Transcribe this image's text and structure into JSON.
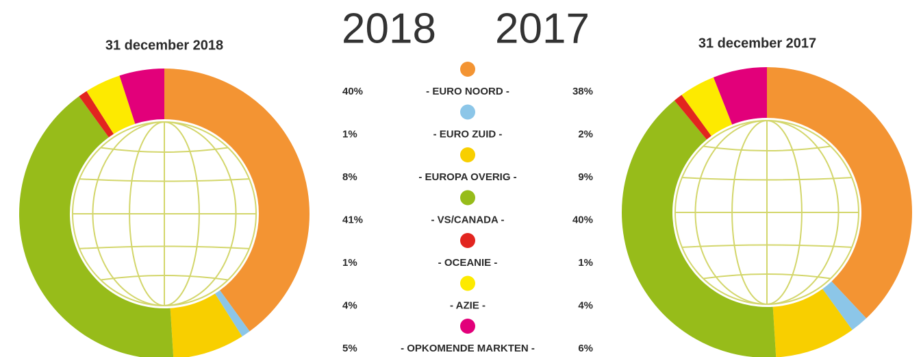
{
  "header": {
    "year_left": "2018",
    "year_right": "2017"
  },
  "chart_data": [
    {
      "type": "pie",
      "title": "31 december 2018",
      "categories": [
        "- EURO NOORD -",
        "- EURO ZUID -",
        "- EUROPA OVERIG -",
        "- VS/CANADA -",
        "- OCEANIE -",
        "- AZIE -",
        "- OPKOMENDE MARKTEN -"
      ],
      "colors": [
        "#f39433",
        "#8cc6e8",
        "#f8cf00",
        "#97bc1a",
        "#e2251f",
        "#fdea00",
        "#e2007a"
      ],
      "values": [
        40,
        1,
        8,
        41,
        1,
        4,
        5
      ],
      "value_labels": [
        "40%",
        "1%",
        "8%",
        "41%",
        "1%",
        "4%",
        "5%"
      ]
    },
    {
      "type": "pie",
      "title": "31 december 2017",
      "values": [
        38,
        2,
        9,
        40,
        1,
        4,
        6
      ],
      "value_labels": [
        "38%",
        "2%",
        "9%",
        "40%",
        "1%",
        "4%",
        "6%"
      ]
    }
  ]
}
